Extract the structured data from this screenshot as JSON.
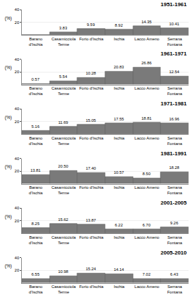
{
  "chart_data": [
    {
      "type": "bar",
      "title": "1951-1961",
      "ylabel": "(%)",
      "categories": [
        "Barano\nd'Ischia",
        "Casamicciola\nTerme",
        "Forio d'Ischia",
        "Ischia",
        "Lacco Ameno",
        "Serrana\nFontana"
      ],
      "values": [
        0,
        3.83,
        9.59,
        8.92,
        14.35,
        10.41
      ],
      "value_labels": [
        null,
        "3.83",
        "9.59",
        "8.92",
        "14.35",
        "10.41"
      ],
      "color": "#7a7a7a",
      "ylim": [
        0,
        40
      ],
      "yticks": [
        20,
        40
      ],
      "grid": true,
      "data_labels": true
    },
    {
      "type": "bar",
      "title": "1961-1971",
      "ylabel": "(%)",
      "categories": [
        "Barano\nd'Ischia",
        "Casamicciola\nTerme",
        "Forio d'Ischia",
        "Ischia",
        "Lacco Ameno",
        "Serrana\nFontana"
      ],
      "values": [
        0.57,
        5.54,
        10.28,
        20.83,
        26.86,
        12.54
      ],
      "value_labels": [
        "0.57",
        "5.54",
        "10.28",
        "20.83",
        "26.86",
        "12.54"
      ],
      "color": "#7a7a7a",
      "ylim": [
        0,
        40
      ],
      "yticks": [
        20,
        40
      ],
      "grid": true,
      "data_labels": true
    },
    {
      "type": "bar",
      "title": "1971-1981",
      "ylabel": "(%)",
      "categories": [
        "Barano\nd'Ischia",
        "Casamicciola\nTerme",
        "Forio d'Ischia",
        "Ischia",
        "Lacco Ameno",
        "Serrana\nFontana"
      ],
      "values": [
        5.16,
        11.69,
        15.05,
        17.55,
        18.81,
        16.96
      ],
      "value_labels": [
        "5.16",
        "11.69",
        "15.05",
        "17.55",
        "18.81",
        "16.96"
      ],
      "color": "#7a7a7a",
      "ylim": [
        0,
        40
      ],
      "yticks": [
        20,
        40
      ],
      "grid": true,
      "data_labels": true
    },
    {
      "type": "bar",
      "title": "1981-1991",
      "ylabel": "(%)",
      "categories": [
        "Barano\nd'Ischia",
        "Casamicciola\nTerme",
        "Forio d'Ischia",
        "Ischia",
        "Lacco Ameno",
        "Serrana\nFontana"
      ],
      "values": [
        13.81,
        20.5,
        17.4,
        10.57,
        8.5,
        18.28
      ],
      "value_labels": [
        "13.81",
        "20.50",
        "17.40",
        "10.57",
        "8.50",
        "18.28"
      ],
      "color": "#7a7a7a",
      "ylim": [
        0,
        40
      ],
      "yticks": [
        20,
        40
      ],
      "grid": true,
      "data_labels": true
    },
    {
      "type": "bar",
      "title": "2001-2005",
      "ylabel": "(%)",
      "categories": [
        "Barano\nd'Ischia",
        "Casamicciola\nTerme",
        "Forio d'Ischia",
        "Ischia",
        "Lacco Ameno",
        "Serrana\nFontana"
      ],
      "values": [
        8.25,
        15.62,
        13.87,
        6.22,
        6.7,
        9.26
      ],
      "value_labels": [
        "8.25",
        "15.62",
        "13.87",
        "6.22",
        "6.70",
        "9.26"
      ],
      "color": "#7a7a7a",
      "ylim": [
        0,
        40
      ],
      "yticks": [
        20,
        40
      ],
      "grid": true,
      "data_labels": true
    },
    {
      "type": "bar",
      "title": "2005-2010",
      "ylabel": "(%)",
      "categories": [
        "Barano\nd'Ischia",
        "Casamicciola\nTerme",
        "Forio d'Ischia",
        "Ischia",
        "Lacco Ameno",
        "Serrana\nFontana"
      ],
      "values": [
        6.55,
        10.98,
        15.24,
        14.14,
        7.02,
        6.43
      ],
      "value_labels": [
        "6.55",
        "10.98",
        "15.24",
        "14.14",
        "7.02",
        "6.43"
      ],
      "color": "#7a7a7a",
      "ylim": [
        0,
        40
      ],
      "yticks": [
        20,
        40
      ],
      "grid": true,
      "data_labels": true
    }
  ]
}
